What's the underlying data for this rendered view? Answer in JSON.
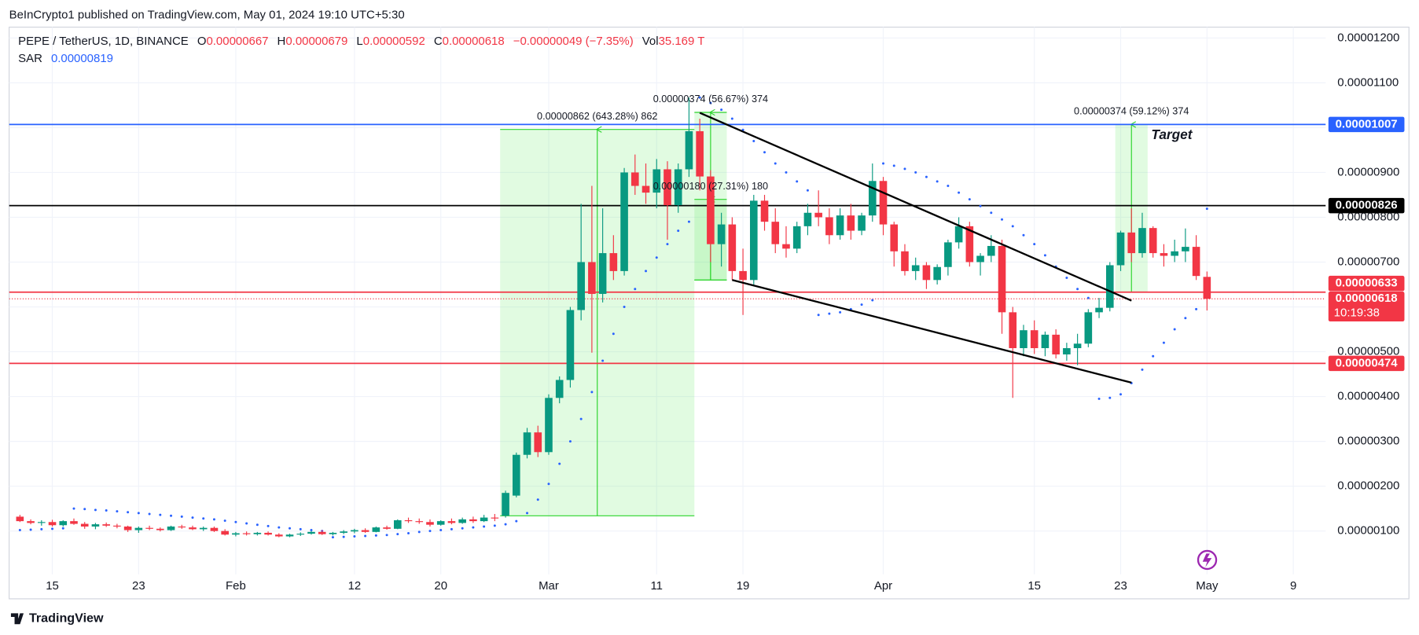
{
  "chart_data": {
    "type": "candlestick",
    "header": "BeInCrypto1 published on TradingView.com, May 01, 2024 19:10 UTC+5:30",
    "footer": "TradingView",
    "legend": {
      "symbol": "PEPE / TetherUS, 1D, BINANCE",
      "o": "O",
      "open": "0.00000667",
      "h": "H",
      "high": "0.00000679",
      "l": "L",
      "low": "0.00000592",
      "c": "C",
      "close": "0.00000618",
      "change": "−0.00000049 (−7.35%)",
      "vol": "Vol",
      "volume": "35.169 T",
      "sar": "SAR",
      "sar_value": "0.00000819"
    },
    "up_color": "#089981",
    "down_color": "#f23645",
    "sar_color": "#2962ff",
    "grid": true,
    "xlim": [
      "2024-01-11",
      "2024-05-12"
    ],
    "ylim": [
      3.2e-08,
      1.2242e-05
    ],
    "yticks": [
      {
        "value": 1.2e-05,
        "label": "0.00001200"
      },
      {
        "value": 1.1e-05,
        "label": "0.00001100"
      },
      {
        "value": 1e-05,
        "label": "0.00001000"
      },
      {
        "value": 9e-06,
        "label": "0.00000900"
      },
      {
        "value": 8e-06,
        "label": "0.00000800"
      },
      {
        "value": 7e-06,
        "label": "0.00000700"
      },
      {
        "value": 6e-06,
        "label": "0.00000600"
      },
      {
        "value": 5e-06,
        "label": "0.00000500"
      },
      {
        "value": 4e-06,
        "label": "0.00000400"
      },
      {
        "value": 3e-06,
        "label": "0.00000300"
      },
      {
        "value": 2e-06,
        "label": "0.00000200"
      },
      {
        "value": 1e-06,
        "label": "0.00000100"
      }
    ],
    "xticks": [
      {
        "value": "2024-01-15",
        "label": "15"
      },
      {
        "value": "2024-01-23",
        "label": "23"
      },
      {
        "value": "2024-02-01",
        "label": "Feb"
      },
      {
        "value": "2024-02-12",
        "label": "12"
      },
      {
        "value": "2024-02-20",
        "label": "20"
      },
      {
        "value": "2024-03-01",
        "label": "Mar"
      },
      {
        "value": "2024-03-11",
        "label": "11"
      },
      {
        "value": "2024-03-19",
        "label": "19"
      },
      {
        "value": "2024-04-01",
        "label": "Apr"
      },
      {
        "value": "2024-04-15",
        "label": "15"
      },
      {
        "value": "2024-04-23",
        "label": "23"
      },
      {
        "value": "2024-05-01",
        "label": "May"
      },
      {
        "value": "2024-05-09",
        "label": "9"
      }
    ],
    "x": [
      "2024-01-12",
      "2024-01-13",
      "2024-01-14",
      "2024-01-15",
      "2024-01-16",
      "2024-01-17",
      "2024-01-18",
      "2024-01-19",
      "2024-01-20",
      "2024-01-21",
      "2024-01-22",
      "2024-01-23",
      "2024-01-24",
      "2024-01-25",
      "2024-01-26",
      "2024-01-27",
      "2024-01-28",
      "2024-01-29",
      "2024-01-30",
      "2024-01-31",
      "2024-02-01",
      "2024-02-02",
      "2024-02-03",
      "2024-02-04",
      "2024-02-05",
      "2024-02-06",
      "2024-02-07",
      "2024-02-08",
      "2024-02-09",
      "2024-02-10",
      "2024-02-11",
      "2024-02-12",
      "2024-02-13",
      "2024-02-14",
      "2024-02-15",
      "2024-02-16",
      "2024-02-17",
      "2024-02-18",
      "2024-02-19",
      "2024-02-20",
      "2024-02-21",
      "2024-02-22",
      "2024-02-23",
      "2024-02-24",
      "2024-02-25",
      "2024-02-26",
      "2024-02-27",
      "2024-02-28",
      "2024-02-29",
      "2024-03-01",
      "2024-03-02",
      "2024-03-03",
      "2024-03-04",
      "2024-03-05",
      "2024-03-06",
      "2024-03-07",
      "2024-03-08",
      "2024-03-09",
      "2024-03-10",
      "2024-03-11",
      "2024-03-12",
      "2024-03-13",
      "2024-03-14",
      "2024-03-15",
      "2024-03-16",
      "2024-03-17",
      "2024-03-18",
      "2024-03-19",
      "2024-03-20",
      "2024-03-21",
      "2024-03-22",
      "2024-03-23",
      "2024-03-24",
      "2024-03-25",
      "2024-03-26",
      "2024-03-27",
      "2024-03-28",
      "2024-03-29",
      "2024-03-30",
      "2024-03-31",
      "2024-04-01",
      "2024-04-02",
      "2024-04-03",
      "2024-04-04",
      "2024-04-05",
      "2024-04-06",
      "2024-04-07",
      "2024-04-08",
      "2024-04-09",
      "2024-04-10",
      "2024-04-11",
      "2024-04-12",
      "2024-04-13",
      "2024-04-14",
      "2024-04-15",
      "2024-04-16",
      "2024-04-17",
      "2024-04-18",
      "2024-04-19",
      "2024-04-20",
      "2024-04-21",
      "2024-04-22",
      "2024-04-23",
      "2024-04-24",
      "2024-04-25",
      "2024-04-26",
      "2024-04-27",
      "2024-04-28",
      "2024-04-29",
      "2024-04-30",
      "2024-05-01"
    ],
    "ohlc": [
      [
        1.32e-06,
        1.36e-06,
        1.2e-06,
        1.22e-06
      ],
      [
        1.22e-06,
        1.26e-06,
        1.15e-06,
        1.18e-06
      ],
      [
        1.18e-06,
        1.24e-06,
        1.12e-06,
        1.2e-06
      ],
      [
        1.2e-06,
        1.25e-06,
        1.1e-06,
        1.13e-06
      ],
      [
        1.13e-06,
        1.24e-06,
        1.1e-06,
        1.22e-06
      ],
      [
        1.22e-06,
        1.28e-06,
        1.14e-06,
        1.16e-06
      ],
      [
        1.16e-06,
        1.2e-06,
        1.05e-06,
        1.1e-06
      ],
      [
        1.1e-06,
        1.18e-06,
        1.04e-06,
        1.15e-06
      ],
      [
        1.15e-06,
        1.19e-06,
        1.09e-06,
        1.12e-06
      ],
      [
        1.12e-06,
        1.16e-06,
        1.06e-06,
        1.1e-06
      ],
      [
        1.1e-06,
        1.12e-06,
        9.8e-07,
        1.02e-06
      ],
      [
        1.02e-06,
        1.1e-06,
        9.6e-07,
        1.07e-06
      ],
      [
        1.07e-06,
        1.12e-06,
        1.02e-06,
        1.05e-06
      ],
      [
        1.05e-06,
        1.08e-06,
        9.9e-07,
        1.02e-06
      ],
      [
        1.02e-06,
        1.12e-06,
        1e-06,
        1.1e-06
      ],
      [
        1.1e-06,
        1.14e-06,
        1.05e-06,
        1.08e-06
      ],
      [
        1.08e-06,
        1.12e-06,
        1.02e-06,
        1.04e-06
      ],
      [
        1.04e-06,
        1.1e-06,
        1e-06,
        1.07e-06
      ],
      [
        1.07e-06,
        1.1e-06,
        9.8e-07,
        1e-06
      ],
      [
        1e-06,
        1.04e-06,
        9e-07,
        9.2e-07
      ],
      [
        9.2e-07,
        9.8e-07,
        8.8e-07,
        9.5e-07
      ],
      [
        9.5e-07,
        9.9e-07,
        9e-07,
        9.3e-07
      ],
      [
        9.3e-07,
        9.8e-07,
        9e-07,
        9.6e-07
      ],
      [
        9.6e-07,
        9.9e-07,
        9e-07,
        9.2e-07
      ],
      [
        9.2e-07,
        9.5e-07,
        8.6e-07,
        8.8e-07
      ],
      [
        8.8e-07,
        9.4e-07,
        8.6e-07,
        9.2e-07
      ],
      [
        9.2e-07,
        9.7e-07,
        8.9e-07,
        9.4e-07
      ],
      [
        9.4e-07,
        1e-06,
        9.2e-07,
        9.8e-07
      ],
      [
        9.8e-07,
        1.02e-06,
        9.1e-07,
        9.3e-07
      ],
      [
        9.3e-07,
        9.8e-07,
        9e-07,
        9.6e-07
      ],
      [
        9.6e-07,
        1.02e-06,
        9.3e-07,
        9.9e-07
      ],
      [
        9.9e-07,
        1.05e-06,
        9.5e-07,
        1.02e-06
      ],
      [
        1.02e-06,
        1.06e-06,
        9.6e-07,
        9.8e-07
      ],
      [
        9.8e-07,
        1.1e-06,
        9.7e-07,
        1.08e-06
      ],
      [
        1.08e-06,
        1.12e-06,
        1.03e-06,
        1.05e-06
      ],
      [
        1.05e-06,
        1.26e-06,
        1.04e-06,
        1.24e-06
      ],
      [
        1.24e-06,
        1.3e-06,
        1.18e-06,
        1.22e-06
      ],
      [
        1.22e-06,
        1.28e-06,
        1.16e-06,
        1.2e-06
      ],
      [
        1.2e-06,
        1.26e-06,
        1.1e-06,
        1.14e-06
      ],
      [
        1.14e-06,
        1.24e-06,
        1.12e-06,
        1.22e-06
      ],
      [
        1.22e-06,
        1.28e-06,
        1.15e-06,
        1.18e-06
      ],
      [
        1.18e-06,
        1.3e-06,
        1.16e-06,
        1.26e-06
      ],
      [
        1.26e-06,
        1.32e-06,
        1.18e-06,
        1.22e-06
      ],
      [
        1.22e-06,
        1.36e-06,
        1.2e-06,
        1.3e-06
      ],
      [
        1.3e-06,
        1.38e-06,
        1.22e-06,
        1.28e-06
      ],
      [
        1.34e-06,
        1.9e-06,
        1.3e-06,
        1.85e-06
      ],
      [
        1.79e-06,
        2.75e-06,
        1.75e-06,
        2.7e-06
      ],
      [
        2.7e-06,
        3.3e-06,
        2.62e-06,
        3.2e-06
      ],
      [
        3.2e-06,
        3.35e-06,
        2.65e-06,
        2.76e-06
      ],
      [
        2.76e-06,
        4.05e-06,
        2.7e-06,
        3.97e-06
      ],
      [
        3.97e-06,
        4.45e-06,
        3.85e-06,
        4.37e-06
      ],
      [
        4.37e-06,
        6e-06,
        4.2e-06,
        5.93e-06
      ],
      [
        5.93e-06,
        8.3e-06,
        5.7e-06,
        7e-06
      ],
      [
        7e-06,
        8.7e-06,
        4.98e-06,
        6.29e-06
      ],
      [
        6.29e-06,
        8.2e-06,
        6.1e-06,
        7.2e-06
      ],
      [
        7.2e-06,
        7.6e-06,
        6.6e-06,
        6.8e-06
      ],
      [
        6.8e-06,
        9.1e-06,
        6.7e-06,
        9e-06
      ],
      [
        9e-06,
        9.4e-06,
        8.5e-06,
        8.7e-06
      ],
      [
        8.7e-06,
        9.2e-06,
        8.3e-06,
        8.55e-06
      ],
      [
        8.55e-06,
        9.3e-06,
        8.2e-06,
        9.07e-06
      ],
      [
        9.07e-06,
        9.25e-06,
        7.5e-06,
        8.27e-06
      ],
      [
        8.27e-06,
        9.2e-06,
        8.1e-06,
        9.07e-06
      ],
      [
        9.07e-06,
        1.067e-05,
        8.9e-06,
        9.92e-06
      ],
      [
        9.92e-06,
        1.02e-05,
        8.6e-06,
        8.91e-06
      ],
      [
        8.91e-06,
        9.05e-06,
        7e-06,
        7.4e-06
      ],
      [
        7.4e-06,
        8.1e-06,
        6.9e-06,
        7.84e-06
      ],
      [
        7.84e-06,
        8e-06,
        6.6e-06,
        6.8e-06
      ],
      [
        6.8e-06,
        7.3e-06,
        5.82e-06,
        6.6e-06
      ],
      [
        6.6e-06,
        8.5e-06,
        6.5e-06,
        8.37e-06
      ],
      [
        8.37e-06,
        8.5e-06,
        7.7e-06,
        7.9e-06
      ],
      [
        7.9e-06,
        8.2e-06,
        7.2e-06,
        7.4e-06
      ],
      [
        7.4e-06,
        7.8e-06,
        7.1e-06,
        7.3e-06
      ],
      [
        7.3e-06,
        7.9e-06,
        7.2e-06,
        7.8e-06
      ],
      [
        7.8e-06,
        8.3e-06,
        7.6e-06,
        8.1e-06
      ],
      [
        8.1e-06,
        8.6e-06,
        7.8e-06,
        8e-06
      ],
      [
        8e-06,
        8.2e-06,
        7.4e-06,
        7.6e-06
      ],
      [
        7.6e-06,
        8.2e-06,
        7.5e-06,
        8.04e-06
      ],
      [
        8.04e-06,
        8.3e-06,
        7.5e-06,
        7.7e-06
      ],
      [
        7.7e-06,
        8.1e-06,
        7.6e-06,
        8.04e-06
      ],
      [
        8.04e-06,
        9.2e-06,
        7.9e-06,
        8.81e-06
      ],
      [
        8.81e-06,
        8.9e-06,
        7.6e-06,
        7.84e-06
      ],
      [
        7.84e-06,
        7.9e-06,
        6.9e-06,
        7.24e-06
      ],
      [
        7.24e-06,
        7.4e-06,
        6.7e-06,
        6.8e-06
      ],
      [
        6.8e-06,
        7.1e-06,
        6.6e-06,
        6.93e-06
      ],
      [
        6.93e-06,
        7e-06,
        6.4e-06,
        6.6e-06
      ],
      [
        6.6e-06,
        6.95e-06,
        6.5e-06,
        6.89e-06
      ],
      [
        6.89e-06,
        7.5e-06,
        6.7e-06,
        7.44e-06
      ],
      [
        7.44e-06,
        8e-06,
        7.3e-06,
        7.8e-06
      ],
      [
        7.8e-06,
        7.9e-06,
        6.9e-06,
        7e-06
      ],
      [
        7e-06,
        7.2e-06,
        6.7e-06,
        7.14e-06
      ],
      [
        7.14e-06,
        7.6e-06,
        7e-06,
        7.36e-06
      ],
      [
        7.36e-06,
        7.5e-06,
        5.4e-06,
        5.88e-06
      ],
      [
        5.88e-06,
        6e-06,
        3.97e-06,
        5.08e-06
      ],
      [
        5.08e-06,
        5.6e-06,
        4.9e-06,
        5.48e-06
      ],
      [
        5.48e-06,
        5.7e-06,
        4.95e-06,
        5.08e-06
      ],
      [
        5.08e-06,
        5.45e-06,
        4.9e-06,
        5.38e-06
      ],
      [
        5.38e-06,
        5.5e-06,
        4.85e-06,
        4.94e-06
      ],
      [
        4.94e-06,
        5.2e-06,
        4.8e-06,
        5.08e-06
      ],
      [
        5.08e-06,
        5.4e-06,
        4.7e-06,
        5.18e-06
      ],
      [
        5.18e-06,
        5.95e-06,
        5.1e-06,
        5.88e-06
      ],
      [
        5.88e-06,
        6.2e-06,
        5.75e-06,
        5.98e-06
      ],
      [
        5.98e-06,
        7e-06,
        5.9e-06,
        6.93e-06
      ],
      [
        6.93e-06,
        7.7e-06,
        6.8e-06,
        7.66e-06
      ],
      [
        7.66e-06,
        8.2e-06,
        7e-06,
        7.2e-06
      ],
      [
        7.2e-06,
        8.1e-06,
        7.1e-06,
        7.76e-06
      ],
      [
        7.76e-06,
        7.8e-06,
        7.1e-06,
        7.2e-06
      ],
      [
        7.2e-06,
        7.4e-06,
        6.9e-06,
        7.14e-06
      ],
      [
        7.14e-06,
        7.5e-06,
        7e-06,
        7.24e-06
      ],
      [
        7.24e-06,
        7.75e-06,
        7e-06,
        7.34e-06
      ],
      [
        7.34e-06,
        7.6e-06,
        6.6e-06,
        6.69e-06
      ],
      [
        6.67e-06,
        6.79e-06,
        5.92e-06,
        6.18e-06
      ]
    ],
    "sar": [
      1.02e-06,
      1.03e-06,
      1.04e-06,
      1.05e-06,
      1.06e-06,
      1.5e-06,
      1.49e-06,
      1.47e-06,
      1.46e-06,
      1.44e-06,
      1.42e-06,
      1.4e-06,
      1.38e-06,
      1.36e-06,
      1.34e-06,
      1.32e-06,
      1.3e-06,
      1.28e-06,
      1.26e-06,
      1.23e-06,
      1.2e-06,
      1.17e-06,
      1.14e-06,
      1.11e-06,
      1.08e-06,
      1.06e-06,
      1.04e-06,
      1.02e-06,
      1e-06,
      8.6e-07,
      8.7e-07,
      8.8e-07,
      8.9e-07,
      9e-07,
      9.1e-07,
      9.3e-07,
      9.5e-07,
      9.8e-07,
      1e-06,
      1.02e-06,
      1.04e-06,
      1.06e-06,
      1.08e-06,
      1.1e-06,
      1.12e-06,
      1.15e-06,
      1.22e-06,
      1.4e-06,
      1.7e-06,
      2.05e-06,
      2.5e-06,
      3e-06,
      3.5e-06,
      4.1e-06,
      4.8e-06,
      5.4e-06,
      6e-06,
      6.4e-06,
      6.8e-06,
      7.1e-06,
      7.4e-06,
      7.7e-06,
      7.9e-06,
      1.067e-05,
      1.055e-05,
      1.04e-05,
      1.02e-05,
      9.95e-06,
      9.7e-06,
      9.45e-06,
      9.2e-06,
      9e-06,
      8.8e-06,
      8.6e-06,
      5.82e-06,
      5.85e-06,
      5.88e-06,
      5.95e-06,
      6.05e-06,
      6.15e-06,
      9.2e-06,
      9.15e-06,
      9.08e-06,
      9e-06,
      8.9e-06,
      8.8e-06,
      8.7e-06,
      8.55e-06,
      8.4e-06,
      8.25e-06,
      8.1e-06,
      7.95e-06,
      7.8e-06,
      7.6e-06,
      7.4e-06,
      7.15e-06,
      6.9e-06,
      6.65e-06,
      6.4e-06,
      6.2e-06,
      3.95e-06,
      3.97e-06,
      4.05e-06,
      4.3e-06,
      4.6e-06,
      4.9e-06,
      5.2e-06,
      5.5e-06,
      5.75e-06,
      5.95e-06,
      8.19e-06
    ],
    "levels": [
      {
        "value": 1.007e-05,
        "label": "0.00001007",
        "color": "#2962ff"
      },
      {
        "value": 8.26e-06,
        "label": "0.00000826",
        "color": "#000000"
      },
      {
        "value": 6.33e-06,
        "label": "0.00000633",
        "color": "#f23645"
      },
      {
        "value": 4.74e-06,
        "label": "0.00000474",
        "color": "#f23645"
      }
    ],
    "last_price": {
      "value": 6.18e-06,
      "label": "0.00000618",
      "countdown": "10:19:38",
      "color": "#f23645"
    },
    "measurements": [
      {
        "start": "2024-02-26",
        "end": "2024-03-14",
        "from": 1.34e-06,
        "to": 9.96e-06,
        "label": "0.00000862 (643.28%) 862"
      },
      {
        "start": "2024-03-15",
        "end": "2024-03-17",
        "from": 6.6e-06,
        "to": 1.034e-05,
        "label": "0.00000374 (56.67%) 374"
      },
      {
        "start": "2024-03-15",
        "end": "2024-03-17",
        "from": 6.6e-06,
        "to": 8.4e-06,
        "label": "0.00000180 (27.31%) 180"
      },
      {
        "start": "2024-04-23",
        "end": "2024-04-25",
        "from": 6.33e-06,
        "to": 1.007e-05,
        "label": "0.00000374 (59.12%) 374",
        "note": "Target"
      }
    ],
    "trendlines": [
      {
        "x1": "2024-03-15",
        "y1": 1.033e-05,
        "x2": "2024-04-24",
        "y2": 6.14e-06
      },
      {
        "x1": "2024-03-18",
        "y1": 6.6e-06,
        "x2": "2024-04-24",
        "y2": 4.31e-06
      }
    ]
  }
}
